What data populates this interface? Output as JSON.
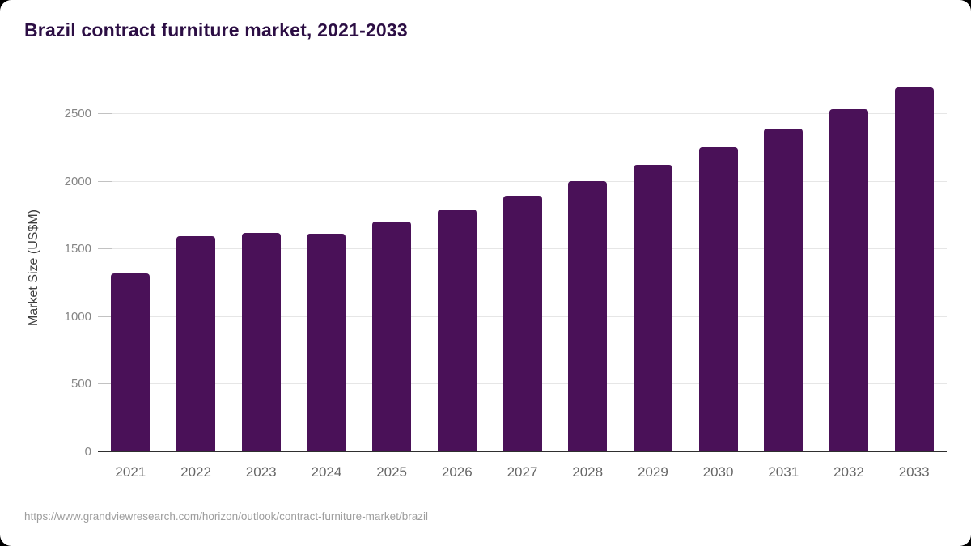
{
  "title": "Brazil contract furniture market, 2021-2033",
  "footer": {
    "source_url": "https://www.grandviewresearch.com/horizon/outlook/contract-furniture-market/brazil"
  },
  "colors": {
    "bar": "#4a1158",
    "title_text": "#2c0e44",
    "axis_line": "#2f2f2f",
    "gridline": "#e6e6e6",
    "card_background": "#ffffff",
    "page_background": "#000000"
  },
  "chart_data": {
    "type": "bar",
    "title": "Brazil contract furniture market, 2021-2033",
    "categories": [
      "2021",
      "2022",
      "2023",
      "2024",
      "2025",
      "2026",
      "2027",
      "2028",
      "2029",
      "2030",
      "2031",
      "2032",
      "2033"
    ],
    "values": [
      1315,
      1590,
      1615,
      1610,
      1700,
      1790,
      1890,
      2000,
      2120,
      2250,
      2385,
      2530,
      2690
    ],
    "xlabel": "",
    "ylabel": "Market Size (US$M)",
    "ylim": [
      0,
      2740
    ],
    "yticks": [
      0,
      500,
      1000,
      1500,
      2000,
      2500
    ],
    "grid": true,
    "legend": false,
    "bar_color": "#4a1158"
  }
}
